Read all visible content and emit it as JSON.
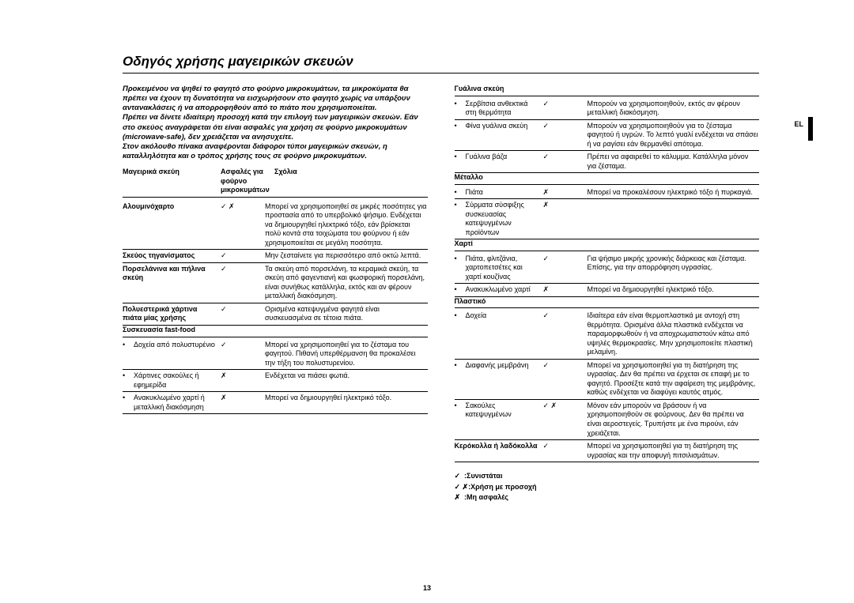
{
  "title": "Οδηγός χρήσης μαγειρικών σκευών",
  "intro1": "Προκειμένου να ψηθεί το φαγητό στο φούρνο μικροκυμάτων, τα μικροκύματα θα πρέπει να έχουν τη δυνατότητα να εισχωρήσουν στο φαγητό χωρίς να υπάρξουν αντανακλάσεις ή να απορροφηθούν από το πιάτο που χρησιμοποιείται.",
  "intro2": "Πρέπει να δίνετε ιδιαίτερη προσοχή κατά την επιλογή των μαγειρικών σκευών. Εάν στο σκεύος αναγράφεται ότι είναι ασφαλές για χρήση σε φούρνο μικροκυμάτων (microwave-safe), δεν χρειάζεται να ανησυχείτε.",
  "intro3": "Στον ακόλουθο πίνακα αναφέρονται διάφοροι τύποι μαγειρικών σκευών, η καταλληλότητα και ο τρόπος χρήσης τους σε φούρνο μικροκυμάτων.",
  "headers": {
    "c1": "Μαγειρικά σκεύη",
    "c2": "Ασφαλές για φούρνο μικροκυμάτων",
    "c3": "Σχόλια"
  },
  "left": [
    {
      "name": "Αλουμινόχαρτο",
      "safe": "✓ ✗",
      "note": "Μπορεί να χρησιμοποιηθεί σε μικρές ποσότητες για προστασία από το υπερβολικό ψήσιμο. Ενδέχεται να δημιουργηθεί ηλεκτρικό τόξο, εάν βρίσκεται πολύ κοντά στα τοιχώματα του φούρνου ή εάν χρησιμοποιείται σε μεγάλη ποσότητα.",
      "bold": true
    },
    {
      "name": "Σκεύος τηγανίσματος",
      "safe": "✓",
      "note": "Μην ζεσταίνετε για περισσότερο από οκτώ λεπτά.",
      "bold": true
    },
    {
      "name": "Πορσελάνινα και πήλινα σκεύη",
      "safe": "✓",
      "note": "Τα σκεύη από πορσελάνη, τα κεραμικά σκεύη, τα σκεύη από φαγεντιανή και φωσφορική πορσελάνη, είναι συνήθως κατάλληλα, εκτός και αν φέρουν μεταλλική διακόσμηση.",
      "bold": true
    },
    {
      "name": "Πολυεστερικά χάρτινα πιάτα μίας χρήσης",
      "safe": "✓",
      "note": "Ορισμένα κατεψυγμένα φαγητά είναι συσκευασμένα σε τέτοια πιάτα.",
      "bold": true
    }
  ],
  "fastfood": {
    "title": "Συσκευασία fast-food",
    "rows": [
      {
        "name": "Δοχεία από πολυστυρένιο",
        "safe": "✓",
        "note": "Μπορεί να χρησιμοποιηθεί για το ζέσταμα του φαγητού. Πιθανή υπερθέρμανση θα προκαλέσει την τήξη του πολυστυρενίου."
      },
      {
        "name": "Χάρτινες σακούλες ή εφημερίδα",
        "safe": "✗",
        "note": "Ενδέχεται να πιάσει φωτιά."
      },
      {
        "name": "Ανακυκλωμένο χαρτί ή μεταλλική διακόσμηση",
        "safe": "✗",
        "note": "Μπορεί να δημιουργηθεί ηλεκτρικό τόξο."
      }
    ]
  },
  "glass": {
    "title": "Γυάλινα σκεύη",
    "rows": [
      {
        "name": "Σερβίτσια ανθεκτικά στη θερμότητα",
        "safe": "✓",
        "note": "Μπορούν να χρησιμοποιηθούν, εκτός αν φέρουν μεταλλική διακόσμηση."
      },
      {
        "name": "Φίνα γυάλινα σκεύη",
        "safe": "✓",
        "note": "Μπορούν να χρησιμοποιηθούν για το ζέσταμα φαγητού ή υγρών. Το λεπτό γυαλί ενδέχεται να σπάσει ή να ραγίσει εάν θερμανθεί απότομα."
      },
      {
        "name": "Γυάλινα βάζα",
        "safe": "✓",
        "note": "Πρέπει να αφαιρεθεί το κάλυμμα. Κατάλληλα μόνον για ζέσταμα."
      }
    ]
  },
  "metal": {
    "title": "Μέταλλο",
    "rows": [
      {
        "name": "Πιάτα",
        "safe": "✗",
        "note": "Μπορεί να προκαλέσουν ηλεκτρικό τόξο ή πυρκαγιά."
      },
      {
        "name": "Σύρματα σύσφιξης συσκευασίας κατεψυγμένων προϊόντων",
        "safe": "✗",
        "note": ""
      }
    ]
  },
  "paper": {
    "title": "Χαρτί",
    "rows": [
      {
        "name": "Πιάτα, φλιτζάνια, χαρτοπετσέτες και χαρτί κουζίνας",
        "safe": "✓",
        "note": "Για ψήσιμο μικρής χρονικής διάρκειας και ζέσταμα. Επίσης, για την απορρόφηση υγρασίας."
      },
      {
        "name": "Ανακυκλωμένο χαρτί",
        "safe": "✗",
        "note": "Μπορεί να δημιουργηθεί ηλεκτρικό τόξο."
      }
    ]
  },
  "plastic": {
    "title": "Πλαστικό",
    "rows": [
      {
        "name": "Δοχεία",
        "safe": "✓",
        "note": "Ιδιαίτερα εάν είναι θερμοπλαστικά με αντοχή στη θερμότητα. Ορισμένα άλλα πλαστικά ενδέχεται να παραμορφωθούν ή να αποχρωματιστούν κάτω από υψηλές θερμοκρασίες. Μην χρησιμοποιείτε πλαστική μελαμίνη."
      },
      {
        "name": "Διαφανής μεμβράνη",
        "safe": "✓",
        "note": "Μπορεί να χρησιμοποιηθεί για τη διατήρηση της υγρασίας. Δεν θα πρέπει να έρχεται σε επαφή με το φαγητό. Προσέξτε κατά την αφαίρεση της μεμβράνης, καθώς ενδέχεται να διαφύγει καυτός ατμός."
      },
      {
        "name": "Σακούλες κατεψυγμένων",
        "safe": "✓ ✗",
        "note": "Μόνον εάν μπορούν να βράσουν ή να χρησιμοποιηθούν σε φούρνους. Δεν θα πρέπει να είναι αεροστεγείς. Τρυπήστε με ένα πιρούνι, εάν χρειάζεται."
      }
    ]
  },
  "wax": {
    "name": "Κερόκολλα ή λαδόκολλα",
    "safe": "✓",
    "note": "Μπορεί να χρησιμοποιηθεί για τη διατήρηση της υγρασίας και την αποφυγή πιτσιλισμάτων."
  },
  "legend": {
    "l1": ":Συνιστάται",
    "l2": ":Χρήση με προσοχή",
    "l3": ":Μη ασφαλές"
  },
  "sidelabel": "EL",
  "pagenum": "13"
}
